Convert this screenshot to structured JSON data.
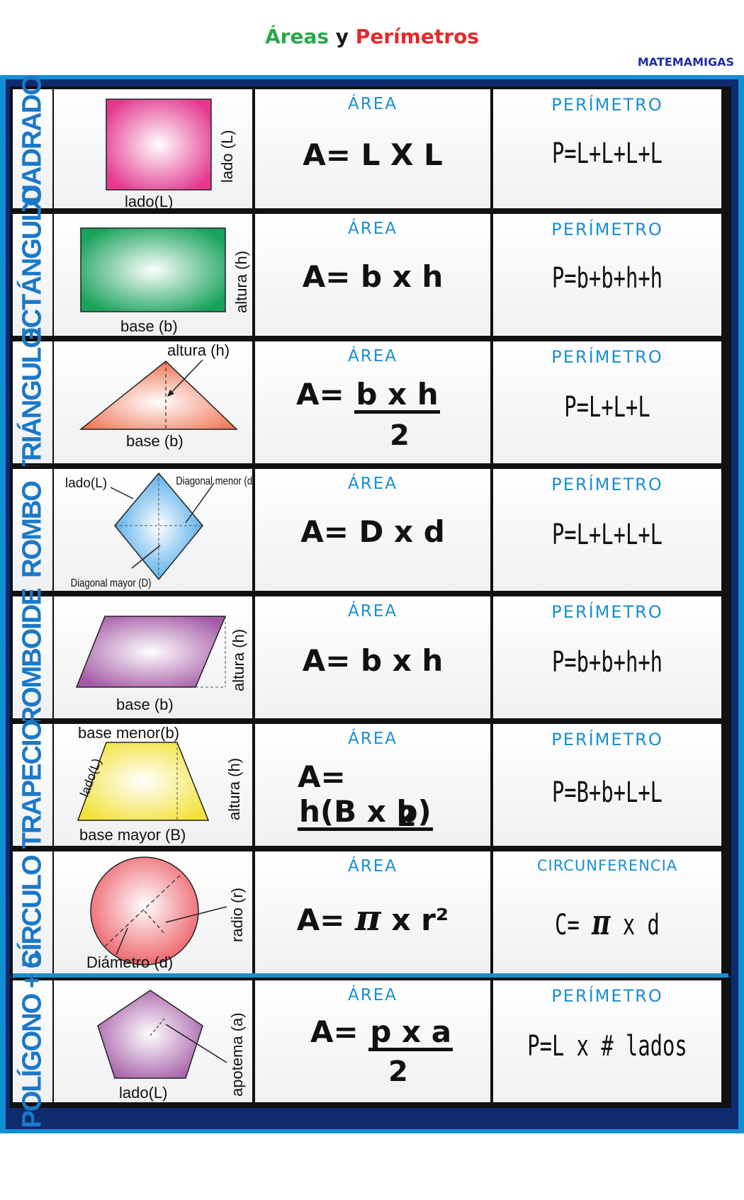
{
  "header": {
    "title_part1": "Áreas",
    "title_part2": "y",
    "title_part3": "Perímetros",
    "brand": "MATEMAMIGAS",
    "colors": {
      "part1": "#2aa84a",
      "part2": "#1a1a1a",
      "part3": "#e4292b"
    }
  },
  "rows": [
    {
      "name": "CUADRADO",
      "area_label": "ÁREA",
      "area_formula": "A= L X L",
      "per_label": "PERÍMETRO",
      "per_formula": "P=L+L+L+L",
      "labels": {
        "side_v": "lado (L)",
        "side_h": "lado(L)"
      }
    },
    {
      "name": "RECTÁNGULO",
      "area_label": "ÁREA",
      "area_formula": "A= b x h",
      "per_label": "PERÍMETRO",
      "per_formula": "P=b+b+h+h",
      "labels": {
        "height": "altura (h)",
        "base": "base (b)"
      }
    },
    {
      "name": "TRIÁNGULO",
      "area_label": "ÁREA",
      "area_prefix": "A=",
      "area_num": "b x h",
      "area_den": "2",
      "per_label": "PERÍMETRO",
      "per_formula": "P=L+L+L",
      "labels": {
        "height": "altura (h)",
        "base": "base (b)"
      }
    },
    {
      "name": "ROMBO",
      "area_label": "ÁREA",
      "area_formula": "A= D x d",
      "per_label": "PERÍMETRO",
      "per_formula": "P=L+L+L+L",
      "labels": {
        "side": "lado(L)",
        "minor": "Diagonal menor (d)",
        "major": "Diagonal mayor (D)"
      }
    },
    {
      "name": "ROMBOIDE",
      "area_label": "ÁREA",
      "area_formula": "A= b x h",
      "per_label": "PERÍMETRO",
      "per_formula": "P=b+b+h+h",
      "labels": {
        "height": "altura (h)",
        "base": "base (b)"
      }
    },
    {
      "name": "TRAPECIO",
      "area_label": "ÁREA",
      "area_prefix": "A=",
      "area_num": "h(B x b)",
      "area_den": "2",
      "per_label": "PERÍMETRO",
      "per_formula": "P=B+b+L+L",
      "labels": {
        "minor": "base menor(b)",
        "side": "lado(L)",
        "height": "altura (h)",
        "major": "base mayor (B)"
      }
    },
    {
      "name": "CÍRCULO",
      "area_label": "ÁREA",
      "area_prefix": "A=",
      "area_pi": "π",
      "area_rest": "x r²",
      "per_label": "CIRCUNFERENCIA",
      "per_prefix": "C=",
      "per_pi": "π",
      "per_rest": "x d",
      "labels": {
        "radius": "radio (r)",
        "diameter": "Diámetro (d)"
      }
    },
    {
      "name": "POLÍGONO + 5",
      "area_label": "ÁREA",
      "area_prefix": "A=",
      "area_num": "p x a",
      "area_den": "2",
      "per_label": "PERÍMETRO",
      "per_formula": "P=L x # lados",
      "labels": {
        "apothem": "apotema (a)",
        "side": "lado(L)"
      }
    }
  ]
}
